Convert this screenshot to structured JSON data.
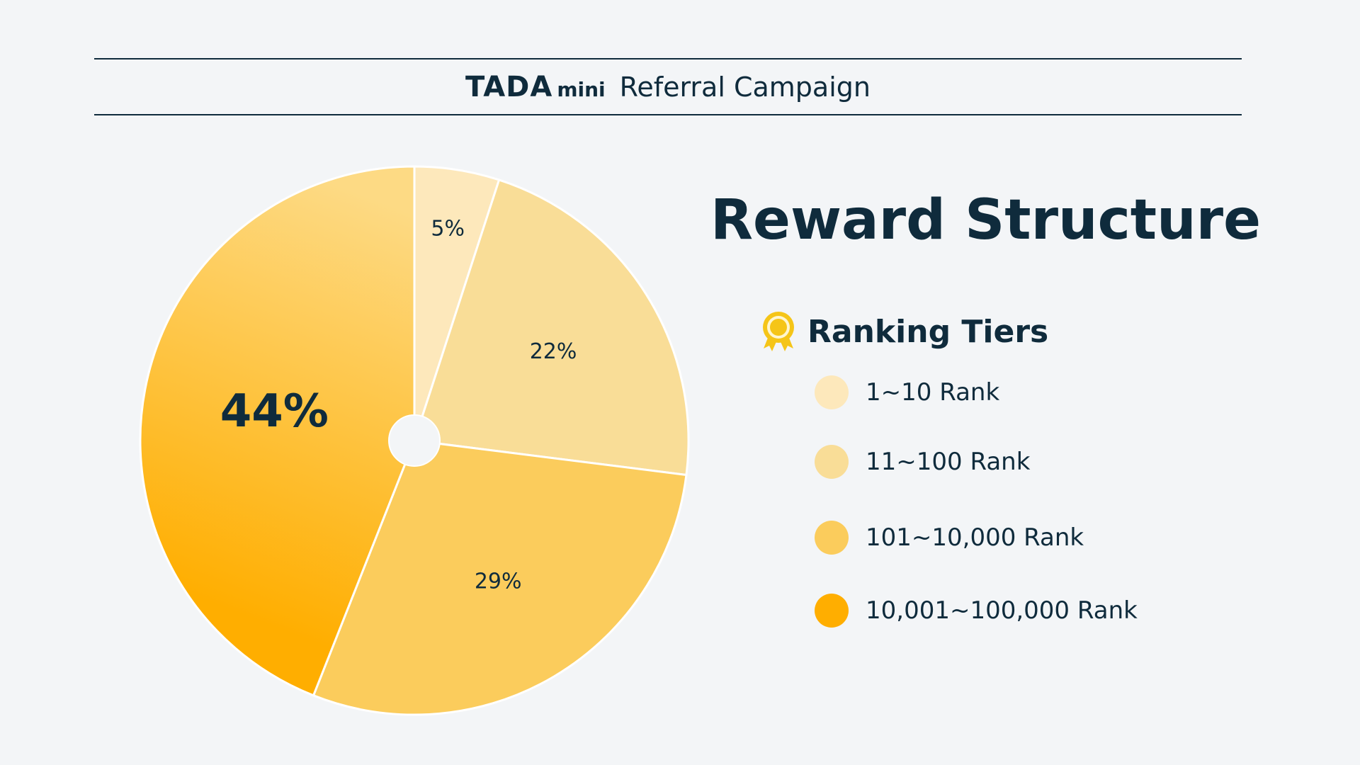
{
  "header": {
    "logo_main": "TADA",
    "logo_sub": "mini",
    "title": "Referral Campaign"
  },
  "panel": {
    "title": "Reward Structure",
    "tiers_heading": "Ranking Tiers",
    "icon": "medal-icon"
  },
  "colors": {
    "text": "#0f2b3c",
    "background": "#f3f5f7",
    "medal": "#f5c518"
  },
  "chart_data": {
    "type": "pie",
    "title": "",
    "categories": [
      "1~10 Rank",
      "11~100 Rank",
      "101~10,000 Rank",
      "10,001~100,000 Rank"
    ],
    "values": [
      5,
      22,
      29,
      44
    ],
    "labels": [
      "5%",
      "22%",
      "29%",
      "44%"
    ],
    "colors": [
      "#fde8bb",
      "#f9dd97",
      "#fbcc5c",
      "#ffae00"
    ],
    "legend_position": "right",
    "start_angle": "12 o'clock, clockwise",
    "donut_hole": true
  }
}
